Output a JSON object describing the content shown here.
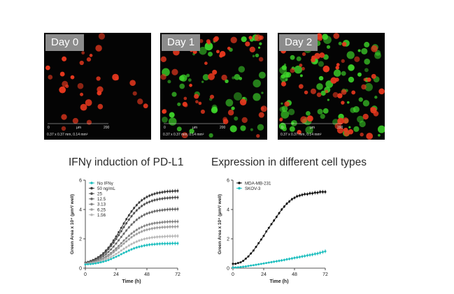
{
  "panels": [
    {
      "day_label": "Day 0",
      "scale_start": "0",
      "scale_unit": "µm",
      "scale_end": "200",
      "dims": "0.37 x 0.37 mm, 0.14 mm²",
      "red_cells": 32,
      "green_cells": 0
    },
    {
      "day_label": "Day 1",
      "scale_start": "0",
      "scale_unit": "µm",
      "scale_end": "200",
      "dims": "0.37 x 0.37 mm, 0.14 mm²",
      "red_cells": 48,
      "green_cells": 55
    },
    {
      "day_label": "Day 2",
      "scale_start": "0",
      "scale_unit": "µm",
      "scale_end": "200",
      "dims": "0.37 x 0.37 mm, 0.14 mm²",
      "red_cells": 58,
      "green_cells": 90
    }
  ],
  "colors": {
    "red_cell": "#e8381e",
    "green_cell": "#3ed62a",
    "teal": "#1fbfbf",
    "black_series": "#111111"
  },
  "chart_data": [
    {
      "type": "line",
      "title": "IFNγ induction of PD-L1",
      "xlabel": "Time (h)",
      "ylabel": "Green Area x 10⁴ (µm²/ well)",
      "xlim": [
        0,
        72
      ],
      "ylim": [
        0,
        6
      ],
      "xticks": [
        0,
        24,
        48,
        72
      ],
      "yticks": [
        0,
        2,
        4,
        6
      ],
      "legend_position": "top-left",
      "series": [
        {
          "name": "50 ng/mL",
          "color": "#3a3a3a",
          "plateau": 5.3
        },
        {
          "name": "25",
          "color": "#505050",
          "plateau": 4.85
        },
        {
          "name": "12.5",
          "color": "#686868",
          "plateau": 4.05
        },
        {
          "name": "3.13",
          "color": "#858585",
          "plateau": 3.2
        },
        {
          "name": "6.25",
          "color": "#9e9e9e",
          "plateau": 2.85
        },
        {
          "name": "1.56",
          "color": "#b8b8b8",
          "plateau": 2.2
        },
        {
          "name": "No IFNγ",
          "color": "#1fbfbf",
          "plateau": 1.7
        }
      ],
      "legend_order": [
        "No IFNγ",
        "50 ng/mL",
        "25",
        "12.5",
        "3.13",
        "6.25",
        "1.56"
      ]
    },
    {
      "type": "line",
      "title": "Expression in different cell types",
      "xlabel": "Time (h)",
      "ylabel": "Green Area x 10⁴ (µm²/ well)",
      "xlim": [
        0,
        72
      ],
      "ylim": [
        0,
        6
      ],
      "xticks": [
        0,
        24,
        48,
        72
      ],
      "yticks": [
        0,
        2,
        4,
        6
      ],
      "legend_position": "top-left",
      "series": [
        {
          "name": "MDA-MB-231",
          "color": "#111111",
          "x": [
            0,
            2,
            4,
            6,
            8,
            10,
            12,
            14,
            16,
            18,
            20,
            22,
            24,
            26,
            28,
            30,
            32,
            34,
            36,
            38,
            40,
            42,
            44,
            46,
            48,
            50,
            52,
            54,
            56,
            58,
            60,
            62,
            64,
            66,
            68,
            70,
            72
          ],
          "y": [
            0.3,
            0.3,
            0.35,
            0.4,
            0.5,
            0.65,
            0.8,
            1.0,
            1.2,
            1.45,
            1.7,
            1.95,
            2.2,
            2.5,
            2.75,
            3.0,
            3.25,
            3.5,
            3.75,
            4.0,
            4.2,
            4.4,
            4.55,
            4.7,
            4.8,
            4.9,
            4.95,
            5.0,
            5.05,
            5.05,
            5.1,
            5.1,
            5.15,
            5.15,
            5.2,
            5.2,
            5.2
          ]
        },
        {
          "name": "SKOV-3",
          "color": "#1fbfbf",
          "x": [
            0,
            2,
            4,
            6,
            8,
            10,
            12,
            14,
            16,
            18,
            20,
            22,
            24,
            26,
            28,
            30,
            32,
            34,
            36,
            38,
            40,
            42,
            44,
            46,
            48,
            50,
            52,
            54,
            56,
            58,
            60,
            62,
            64,
            66,
            68,
            70,
            72
          ],
          "y": [
            0.05,
            0.05,
            0.06,
            0.08,
            0.1,
            0.12,
            0.15,
            0.18,
            0.2,
            0.23,
            0.26,
            0.29,
            0.32,
            0.35,
            0.38,
            0.41,
            0.44,
            0.47,
            0.5,
            0.53,
            0.56,
            0.6,
            0.63,
            0.66,
            0.7,
            0.73,
            0.76,
            0.8,
            0.83,
            0.87,
            0.9,
            0.93,
            0.97,
            1.0,
            1.05,
            1.1,
            1.15
          ]
        }
      ]
    }
  ]
}
